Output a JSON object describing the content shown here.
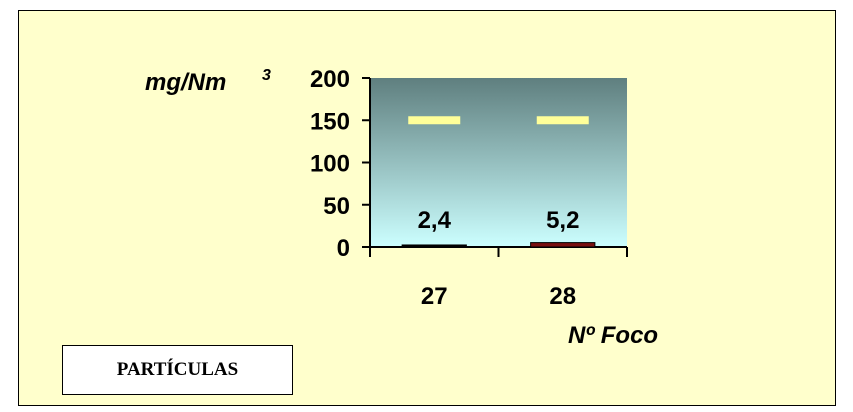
{
  "chart_data": {
    "type": "bar",
    "ylabel": "mg/Nm",
    "ylabel_superscript": "3",
    "xlabel": "Nº Foco",
    "categories": [
      "27",
      "28"
    ],
    "ylim": [
      0,
      200
    ],
    "yticks": [
      "0",
      "50",
      "100",
      "150",
      "200"
    ],
    "series": [
      {
        "values": [
          2.4,
          5.2
        ],
        "data_labels": [
          "2,4",
          "5,2"
        ],
        "colors": [
          "#000000",
          "#7a1010"
        ]
      }
    ],
    "limit_line": {
      "value": 150,
      "color": "#ffff99"
    },
    "plot_background": {
      "top": "#5f7f7f",
      "bottom": "#ccffff"
    },
    "grid": false
  },
  "label_box": {
    "text": "PARTÍCULAS"
  },
  "colors": {
    "background": "#ffffcc",
    "border": "#000000"
  }
}
